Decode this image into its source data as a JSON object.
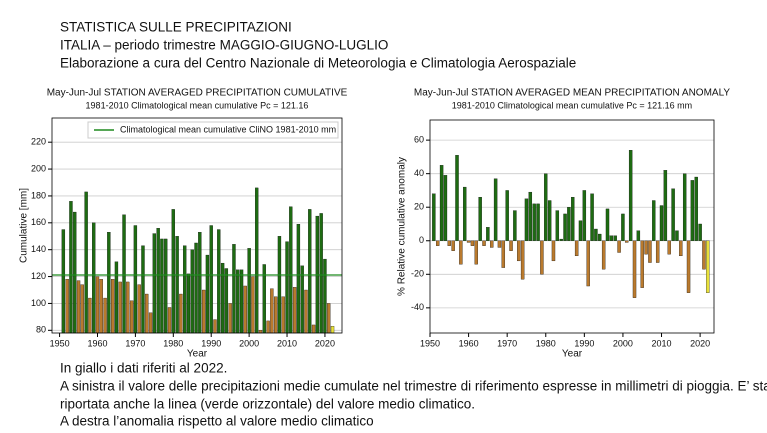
{
  "header": {
    "lines": [
      "STATISTICA SULLE PRECIPITAZIONI",
      "ITALIA – periodo  trimestre MAGGIO-GIUGNO-LUGLIO",
      "Elaborazione a cura del Centro Nazionale di Meteorologia e Climatologia Aerospaziale"
    ]
  },
  "chart_data": [
    {
      "type": "bar",
      "title": "May-Jun-Jul STATION AVERAGED PRECIPITATION CUMULATIVE",
      "subtitle": "1981-2010 Climatological mean cumulative Pc = 121.16",
      "x_label": "Year",
      "y_label": "Cumulative [mm]",
      "x": [
        1951,
        1952,
        1953,
        1954,
        1955,
        1956,
        1957,
        1958,
        1959,
        1960,
        1961,
        1962,
        1963,
        1964,
        1965,
        1966,
        1967,
        1968,
        1969,
        1970,
        1971,
        1972,
        1973,
        1974,
        1975,
        1976,
        1977,
        1978,
        1979,
        1980,
        1981,
        1982,
        1983,
        1984,
        1985,
        1986,
        1987,
        1988,
        1989,
        1990,
        1991,
        1992,
        1993,
        1994,
        1995,
        1996,
        1997,
        1998,
        1999,
        2000,
        2001,
        2002,
        2003,
        2004,
        2005,
        2006,
        2007,
        2008,
        2009,
        2010,
        2011,
        2012,
        2013,
        2014,
        2015,
        2016,
        2017,
        2018,
        2019,
        2020,
        2021,
        2022
      ],
      "values": [
        155,
        118,
        176,
        168,
        117,
        114,
        183,
        104,
        160,
        120,
        118,
        104,
        153,
        118,
        131,
        116,
        166,
        116,
        102,
        158,
        114,
        143,
        107,
        93,
        152,
        156,
        148,
        148,
        97,
        170,
        150,
        107,
        143,
        122,
        140,
        145,
        153,
        110,
        136,
        158,
        88,
        155,
        130,
        126,
        100,
        144,
        125,
        125,
        113,
        141,
        120,
        186,
        80,
        129,
        87,
        111,
        105,
        150,
        105,
        146,
        172,
        112,
        159,
        128,
        110,
        170,
        84,
        165,
        167,
        133,
        100,
        83
      ],
      "mean": 121.16,
      "mean_label": "Climatological mean cumulative CliNO 1981-2010 mm",
      "mean_color": "#1f8a1f",
      "color_above": "#1e6b12",
      "color_below": "#b97a2e",
      "color_last": "#e8e03a",
      "xlim": [
        1948,
        2024.5
      ],
      "xticks": [
        1950,
        1960,
        1970,
        1980,
        1990,
        2000,
        2010,
        2020
      ],
      "ylim": [
        78,
        238
      ],
      "yticks": [
        80,
        100,
        120,
        140,
        160,
        180,
        200,
        220
      ],
      "grid": true
    },
    {
      "type": "bar",
      "title": "May-Jun-Jul STATION AVERAGED MEAN PRECIPITATION ANOMALY",
      "subtitle": "1981-2010 Climatological mean cumulative Pc = 121.16 mm",
      "x_label": "Year",
      "y_label": "% Relative cumulative anomaly",
      "x": [
        1951,
        1952,
        1953,
        1954,
        1955,
        1956,
        1957,
        1958,
        1959,
        1960,
        1961,
        1962,
        1963,
        1964,
        1965,
        1966,
        1967,
        1968,
        1969,
        1970,
        1971,
        1972,
        1973,
        1974,
        1975,
        1976,
        1977,
        1978,
        1979,
        1980,
        1981,
        1982,
        1983,
        1984,
        1985,
        1986,
        1987,
        1988,
        1989,
        1990,
        1991,
        1992,
        1993,
        1994,
        1995,
        1996,
        1997,
        1998,
        1999,
        2000,
        2001,
        2002,
        2003,
        2004,
        2005,
        2006,
        2007,
        2008,
        2009,
        2010,
        2011,
        2012,
        2013,
        2014,
        2015,
        2016,
        2017,
        2018,
        2019,
        2020,
        2021,
        2022
      ],
      "values": [
        28,
        -3,
        45,
        39,
        -3,
        -6,
        51,
        -14,
        32,
        -1,
        -3,
        -14,
        26,
        -3,
        8,
        -4,
        37,
        -4,
        -16,
        30,
        -6,
        18,
        -12,
        -23,
        25,
        29,
        22,
        22,
        -20,
        40,
        24,
        -12,
        18,
        1,
        16,
        20,
        26,
        -9,
        12,
        30,
        -27,
        28,
        7,
        4,
        -17,
        19,
        3,
        3,
        -7,
        16,
        -1,
        54,
        -34,
        6,
        -28,
        -8,
        -13,
        24,
        -13,
        21,
        42,
        -8,
        31,
        6,
        -9,
        40,
        -31,
        36,
        38,
        10,
        -17,
        -31
      ],
      "color_above": "#1e6b12",
      "color_below": "#b97a2e",
      "color_last": "#e8e03a",
      "xlim": [
        1950,
        2023.6
      ],
      "xticks": [
        1950,
        1960,
        1970,
        1980,
        1990,
        2000,
        2010,
        2020
      ],
      "ylim": [
        -55,
        72
      ],
      "yticks": [
        -40,
        -20,
        0,
        20,
        40,
        60
      ],
      "grid": true
    }
  ],
  "footer": {
    "lines": [
      "In giallo i dati riferiti al 2022.",
      "A sinistra il valore delle precipitazioni medie cumulate nel trimestre di riferimento espresse in millimetri di pioggia. E’ stata",
      "riportata anche la linea (verde orizzontale) del valore medio climatico.",
      "A destra l’anomalia rispetto al valore medio climatico"
    ]
  }
}
